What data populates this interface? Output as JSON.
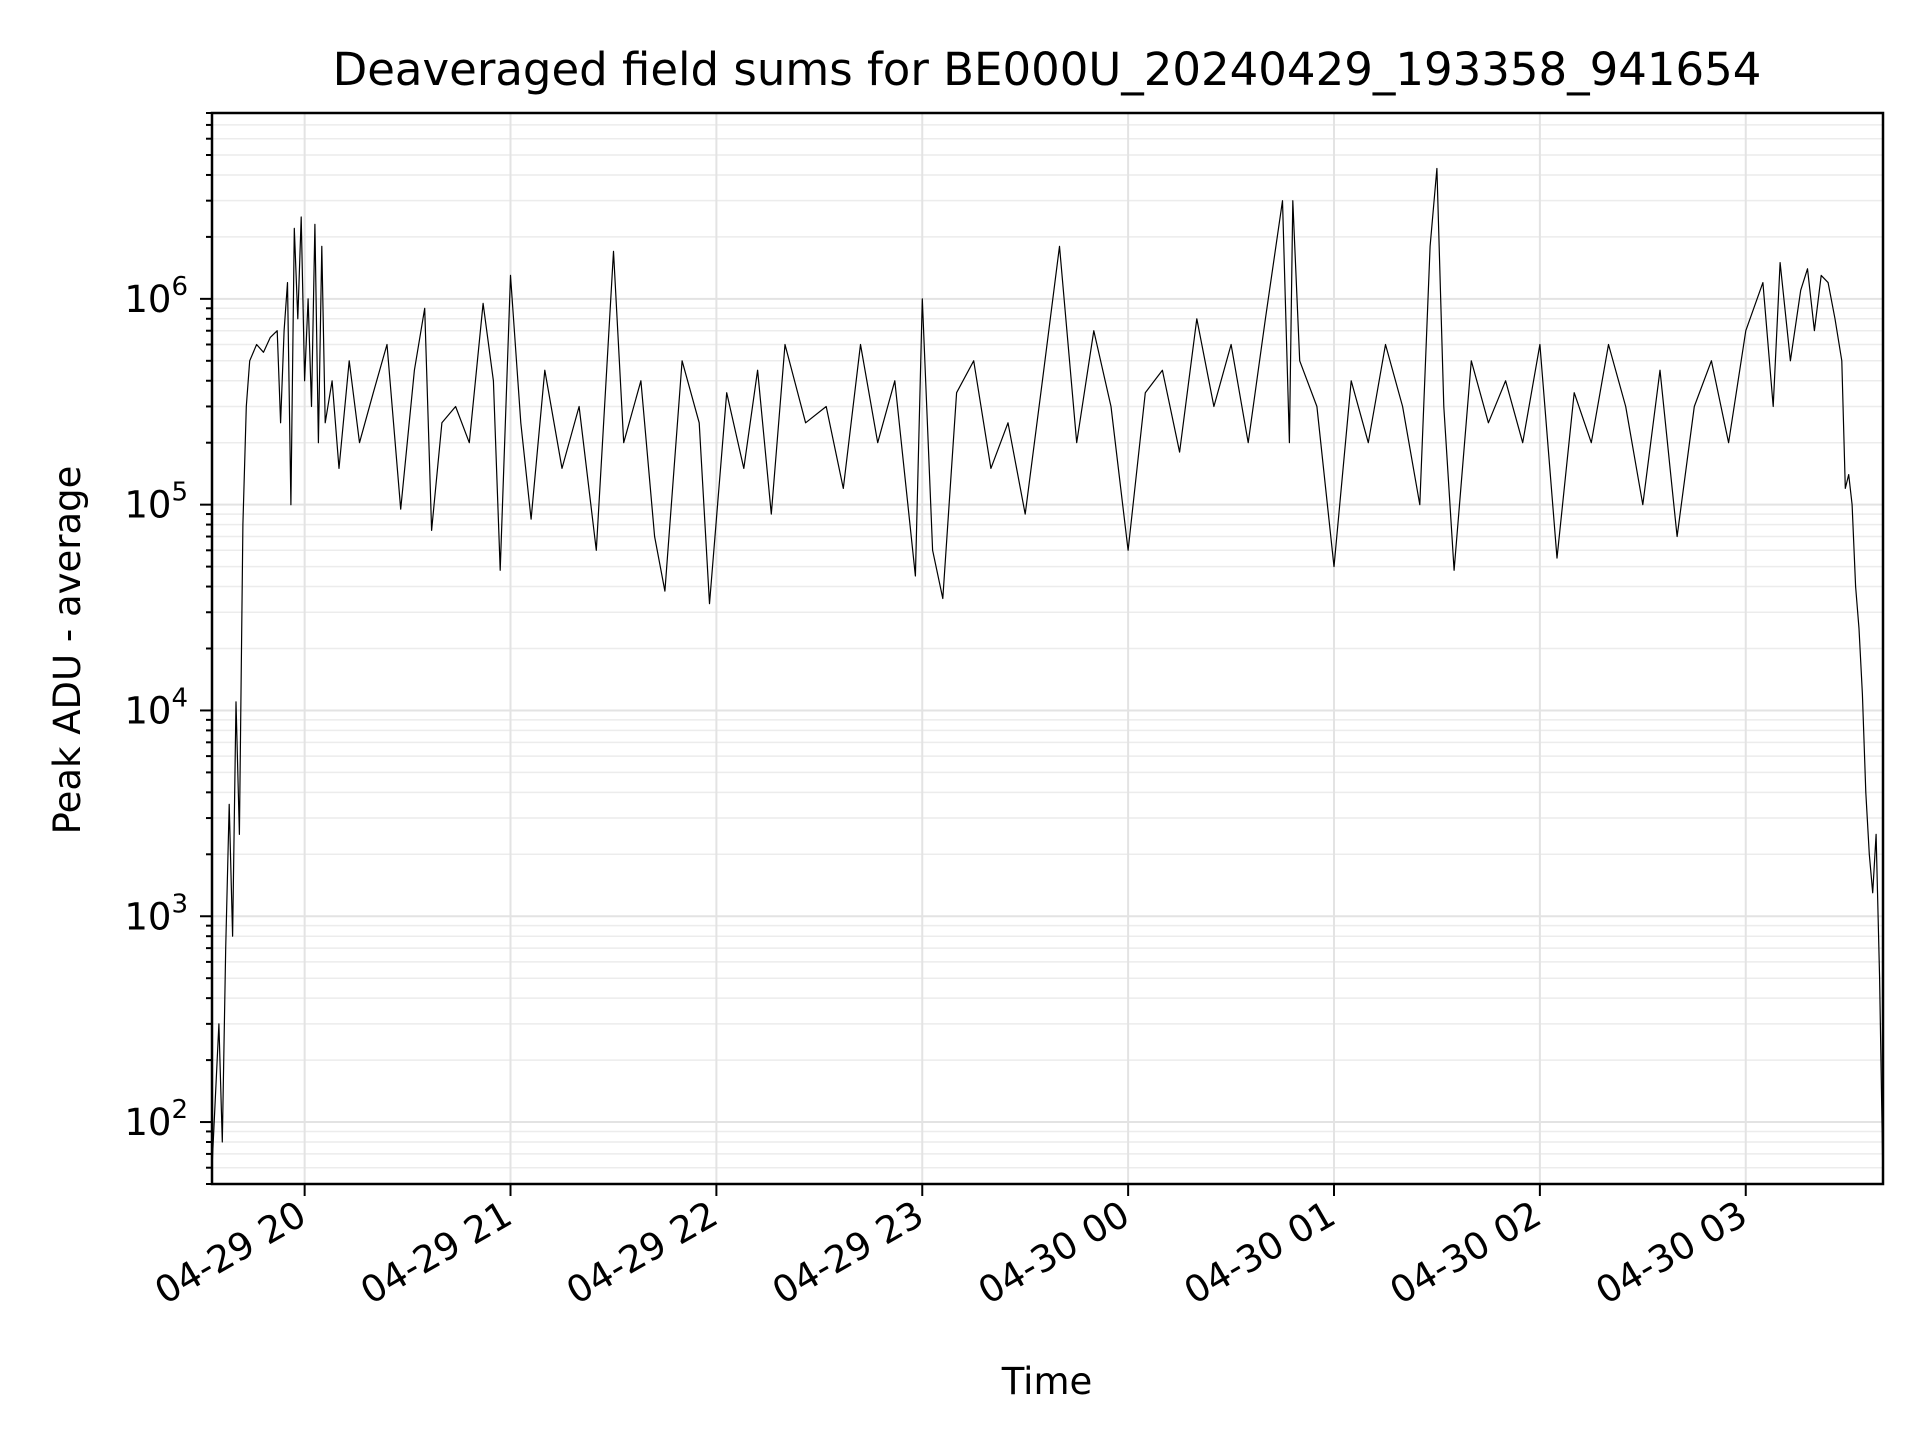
{
  "chart_data": {
    "type": "line",
    "title": "Deaveraged field sums for BE000U_20240429_193358_941654",
    "xlabel": "Time",
    "ylabel": "Peak ADU - average",
    "yscale": "log",
    "xlim": [
      "2024-04-29 19:33",
      "2024-04-30 03:40"
    ],
    "ylim": [
      50,
      8000000
    ],
    "grid": true,
    "x_ticks": [
      {
        "t": "2024-04-29 20:00",
        "label": "04-29 20"
      },
      {
        "t": "2024-04-29 21:00",
        "label": "04-29 21"
      },
      {
        "t": "2024-04-29 22:00",
        "label": "04-29 22"
      },
      {
        "t": "2024-04-29 23:00",
        "label": "04-29 23"
      },
      {
        "t": "2024-04-30 00:00",
        "label": "04-30 00"
      },
      {
        "t": "2024-04-30 01:00",
        "label": "04-30 01"
      },
      {
        "t": "2024-04-30 02:00",
        "label": "04-30 02"
      },
      {
        "t": "2024-04-30 03:00",
        "label": "04-30 03"
      }
    ],
    "y_ticks": [
      {
        "value": 100,
        "base": "10",
        "exp": "2"
      },
      {
        "value": 1000,
        "base": "10",
        "exp": "3"
      },
      {
        "value": 10000,
        "base": "10",
        "exp": "4"
      },
      {
        "value": 100000,
        "base": "10",
        "exp": "5"
      },
      {
        "value": 1000000,
        "base": "10",
        "exp": "6"
      }
    ],
    "series": [
      {
        "color": "#000000",
        "points": [
          [
            "2024-04-29 19:33",
            60
          ],
          [
            "2024-04-29 19:35",
            300
          ],
          [
            "2024-04-29 19:36",
            80
          ],
          [
            "2024-04-29 19:37",
            700
          ],
          [
            "2024-04-29 19:38",
            3500
          ],
          [
            "2024-04-29 19:39",
            800
          ],
          [
            "2024-04-29 19:40",
            11000
          ],
          [
            "2024-04-29 19:41",
            2500
          ],
          [
            "2024-04-29 19:42",
            80000
          ],
          [
            "2024-04-29 19:43",
            300000
          ],
          [
            "2024-04-29 19:44",
            500000
          ],
          [
            "2024-04-29 19:46",
            600000
          ],
          [
            "2024-04-29 19:48",
            550000
          ],
          [
            "2024-04-29 19:50",
            650000
          ],
          [
            "2024-04-29 19:52",
            700000
          ],
          [
            "2024-04-29 19:53",
            250000
          ],
          [
            "2024-04-29 19:54",
            700000
          ],
          [
            "2024-04-29 19:55",
            1200000
          ],
          [
            "2024-04-29 19:56",
            100000
          ],
          [
            "2024-04-29 19:57",
            2200000
          ],
          [
            "2024-04-29 19:58",
            800000
          ],
          [
            "2024-04-29 19:59",
            2500000
          ],
          [
            "2024-04-29 20:00",
            400000
          ],
          [
            "2024-04-29 20:01",
            1000000
          ],
          [
            "2024-04-29 20:02",
            300000
          ],
          [
            "2024-04-29 20:03",
            2300000
          ],
          [
            "2024-04-29 20:04",
            200000
          ],
          [
            "2024-04-29 20:05",
            1800000
          ],
          [
            "2024-04-29 20:06",
            250000
          ],
          [
            "2024-04-29 20:08",
            400000
          ],
          [
            "2024-04-29 20:10",
            150000
          ],
          [
            "2024-04-29 20:13",
            500000
          ],
          [
            "2024-04-29 20:16",
            200000
          ],
          [
            "2024-04-29 20:20",
            350000
          ],
          [
            "2024-04-29 20:24",
            600000
          ],
          [
            "2024-04-29 20:28",
            95000
          ],
          [
            "2024-04-29 20:32",
            450000
          ],
          [
            "2024-04-29 20:35",
            900000
          ],
          [
            "2024-04-29 20:37",
            75000
          ],
          [
            "2024-04-29 20:40",
            250000
          ],
          [
            "2024-04-29 20:44",
            300000
          ],
          [
            "2024-04-29 20:48",
            200000
          ],
          [
            "2024-04-29 20:52",
            950000
          ],
          [
            "2024-04-29 20:55",
            400000
          ],
          [
            "2024-04-29 20:57",
            48000
          ],
          [
            "2024-04-29 21:00",
            1300000
          ],
          [
            "2024-04-29 21:03",
            250000
          ],
          [
            "2024-04-29 21:06",
            85000
          ],
          [
            "2024-04-29 21:10",
            450000
          ],
          [
            "2024-04-29 21:15",
            150000
          ],
          [
            "2024-04-29 21:20",
            300000
          ],
          [
            "2024-04-29 21:25",
            60000
          ],
          [
            "2024-04-29 21:30",
            1700000
          ],
          [
            "2024-04-29 21:33",
            200000
          ],
          [
            "2024-04-29 21:38",
            400000
          ],
          [
            "2024-04-29 21:42",
            70000
          ],
          [
            "2024-04-29 21:45",
            38000
          ],
          [
            "2024-04-29 21:50",
            500000
          ],
          [
            "2024-04-29 21:55",
            250000
          ],
          [
            "2024-04-29 21:58",
            33000
          ],
          [
            "2024-04-29 22:03",
            350000
          ],
          [
            "2024-04-29 22:08",
            150000
          ],
          [
            "2024-04-29 22:12",
            450000
          ],
          [
            "2024-04-29 22:16",
            90000
          ],
          [
            "2024-04-29 22:20",
            600000
          ],
          [
            "2024-04-29 22:26",
            250000
          ],
          [
            "2024-04-29 22:32",
            300000
          ],
          [
            "2024-04-29 22:37",
            120000
          ],
          [
            "2024-04-29 22:42",
            600000
          ],
          [
            "2024-04-29 22:47",
            200000
          ],
          [
            "2024-04-29 22:52",
            400000
          ],
          [
            "2024-04-29 22:58",
            45000
          ],
          [
            "2024-04-29 23:00",
            1000000
          ],
          [
            "2024-04-29 23:03",
            60000
          ],
          [
            "2024-04-29 23:06",
            35000
          ],
          [
            "2024-04-29 23:10",
            350000
          ],
          [
            "2024-04-29 23:15",
            500000
          ],
          [
            "2024-04-29 23:20",
            150000
          ],
          [
            "2024-04-29 23:25",
            250000
          ],
          [
            "2024-04-29 23:30",
            90000
          ],
          [
            "2024-04-29 23:35",
            400000
          ],
          [
            "2024-04-29 23:40",
            1800000
          ],
          [
            "2024-04-29 23:45",
            200000
          ],
          [
            "2024-04-29 23:50",
            700000
          ],
          [
            "2024-04-29 23:55",
            300000
          ],
          [
            "2024-04-30 00:00",
            60000
          ],
          [
            "2024-04-30 00:05",
            350000
          ],
          [
            "2024-04-30 00:10",
            450000
          ],
          [
            "2024-04-30 00:15",
            180000
          ],
          [
            "2024-04-30 00:20",
            800000
          ],
          [
            "2024-04-30 00:25",
            300000
          ],
          [
            "2024-04-30 00:30",
            600000
          ],
          [
            "2024-04-30 00:35",
            200000
          ],
          [
            "2024-04-30 00:40",
            800000
          ],
          [
            "2024-04-30 00:45",
            3000000
          ],
          [
            "2024-04-30 00:47",
            200000
          ],
          [
            "2024-04-30 00:48",
            3000000
          ],
          [
            "2024-04-30 00:50",
            500000
          ],
          [
            "2024-04-30 00:55",
            300000
          ],
          [
            "2024-04-30 01:00",
            50000
          ],
          [
            "2024-04-30 01:05",
            400000
          ],
          [
            "2024-04-30 01:10",
            200000
          ],
          [
            "2024-04-30 01:15",
            600000
          ],
          [
            "2024-04-30 01:20",
            300000
          ],
          [
            "2024-04-30 01:25",
            100000
          ],
          [
            "2024-04-30 01:28",
            1800000
          ],
          [
            "2024-04-30 01:30",
            4300000
          ],
          [
            "2024-04-30 01:32",
            300000
          ],
          [
            "2024-04-30 01:35",
            48000
          ],
          [
            "2024-04-30 01:40",
            500000
          ],
          [
            "2024-04-30 01:45",
            250000
          ],
          [
            "2024-04-30 01:50",
            400000
          ],
          [
            "2024-04-30 01:55",
            200000
          ],
          [
            "2024-04-30 02:00",
            600000
          ],
          [
            "2024-04-30 02:05",
            55000
          ],
          [
            "2024-04-30 02:10",
            350000
          ],
          [
            "2024-04-30 02:15",
            200000
          ],
          [
            "2024-04-30 02:20",
            600000
          ],
          [
            "2024-04-30 02:25",
            300000
          ],
          [
            "2024-04-30 02:30",
            100000
          ],
          [
            "2024-04-30 02:35",
            450000
          ],
          [
            "2024-04-30 02:40",
            70000
          ],
          [
            "2024-04-30 02:45",
            300000
          ],
          [
            "2024-04-30 02:50",
            500000
          ],
          [
            "2024-04-30 02:55",
            200000
          ],
          [
            "2024-04-30 03:00",
            700000
          ],
          [
            "2024-04-30 03:05",
            1200000
          ],
          [
            "2024-04-30 03:08",
            300000
          ],
          [
            "2024-04-30 03:10",
            1500000
          ],
          [
            "2024-04-30 03:13",
            500000
          ],
          [
            "2024-04-30 03:16",
            1100000
          ],
          [
            "2024-04-30 03:18",
            1400000
          ],
          [
            "2024-04-30 03:20",
            700000
          ],
          [
            "2024-04-30 03:22",
            1300000
          ],
          [
            "2024-04-30 03:24",
            1200000
          ],
          [
            "2024-04-30 03:26",
            800000
          ],
          [
            "2024-04-30 03:28",
            500000
          ],
          [
            "2024-04-30 03:29",
            120000
          ],
          [
            "2024-04-30 03:30",
            140000
          ],
          [
            "2024-04-30 03:31",
            100000
          ],
          [
            "2024-04-30 03:32",
            40000
          ],
          [
            "2024-04-30 03:33",
            25000
          ],
          [
            "2024-04-30 03:34",
            12000
          ],
          [
            "2024-04-30 03:35",
            4000
          ],
          [
            "2024-04-30 03:36",
            2000
          ],
          [
            "2024-04-30 03:37",
            1300
          ],
          [
            "2024-04-30 03:38",
            2500
          ],
          [
            "2024-04-30 03:39",
            500
          ],
          [
            "2024-04-30 03:40",
            50
          ]
        ]
      }
    ]
  }
}
